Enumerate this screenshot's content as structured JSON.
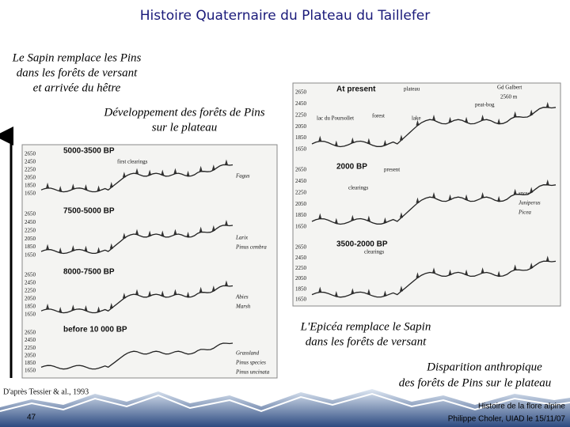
{
  "title": "Histoire Quaternaire du Plateau du Taillefer",
  "captions": [
    "Le Sapin remplace les Pins",
    "dans les forêts de versant",
    "et arrivée du hêtre",
    "Développement des forêts de Pins",
    "sur le plateau",
    "L'Epicéa remplace le Sapin",
    "dans les forêts de versant",
    "Disparition anthropique",
    "des forêts de Pins sur le plateau"
  ],
  "source": "D'après Tessier & al., 1993",
  "footer": {
    "page": "47",
    "line1": "Histoire de la flore alpine",
    "line2": "Philippe Choler, UIAD le 15/11/07"
  },
  "left_figure": {
    "panels": [
      {
        "title": "5000-3500 BP",
        "altitudes": [
          "2650",
          "2450",
          "2250",
          "2050",
          "1850",
          "1650"
        ],
        "labels": [
          "first clearings"
        ],
        "legend": [
          "Fagus"
        ]
      },
      {
        "title": "7500-5000 BP",
        "altitudes": [
          "2650",
          "2450",
          "2250",
          "2050",
          "1850",
          "1650"
        ],
        "labels": [],
        "legend": [
          "Larix",
          "Pinus cembra"
        ]
      },
      {
        "title": "8000-7500 BP",
        "altitudes": [
          "2650",
          "2450",
          "2250",
          "2050",
          "1850",
          "1650"
        ],
        "labels": [],
        "legend": [
          "Abies",
          "Marsh"
        ]
      },
      {
        "title": "before 10 000 BP",
        "altitudes": [
          "2650",
          "2450",
          "2250",
          "2050",
          "1850",
          "1650"
        ],
        "labels": [],
        "legend": [
          "Grassland",
          "Pinus species",
          "Pinus uncinata"
        ]
      }
    ]
  },
  "right_figure": {
    "panels": [
      {
        "title": "At present",
        "altitudes": [
          "2650",
          "2450",
          "2250",
          "2050",
          "1850",
          "1650"
        ],
        "labels": [
          "lac du Poursollet",
          "forest",
          "lake",
          "plateau",
          "peat-bog",
          "Gd Galbert",
          "2560 m"
        ],
        "legend": []
      },
      {
        "title": "2000 BP",
        "altitudes": [
          "2650",
          "2450",
          "2250",
          "2050",
          "1850",
          "1650"
        ],
        "labels": [
          "present",
          "clearings"
        ],
        "legend": [
          "snow",
          "Juniperus",
          "Picea"
        ]
      },
      {
        "title": "3500-2000 BP",
        "altitudes": [
          "2650",
          "2450",
          "2250",
          "2050",
          "1850",
          "1650"
        ],
        "labels": [
          "clearings"
        ],
        "legend": []
      }
    ]
  }
}
